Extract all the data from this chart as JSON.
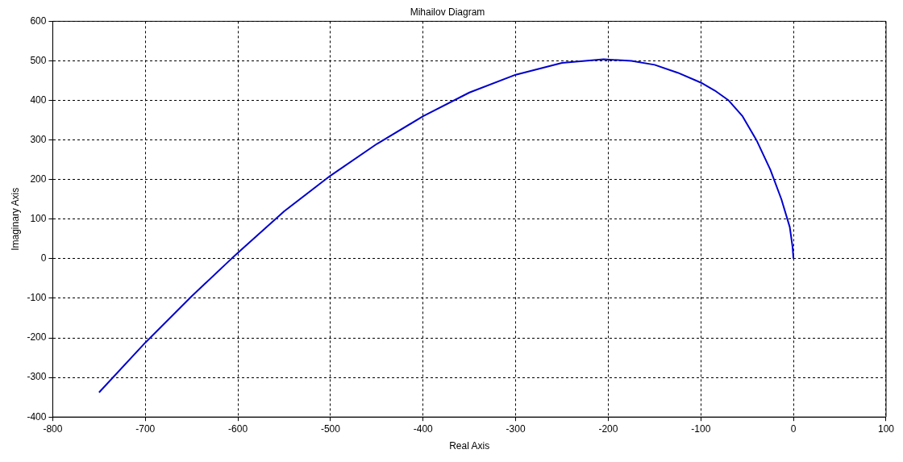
{
  "chart_data": {
    "type": "line",
    "title": "Mihailov Diagram",
    "xlabel": "Real Axis",
    "ylabel": "Imaginary Axis",
    "xlim": [
      -800,
      100
    ],
    "xticks": [
      -800,
      -700,
      -600,
      -500,
      -400,
      -300,
      -200,
      -100,
      0,
      100
    ],
    "ylim": [
      -400,
      600
    ],
    "yticks": [
      -400,
      -300,
      -200,
      -100,
      0,
      100,
      200,
      300,
      400,
      500,
      600
    ],
    "grid": true,
    "marker": "none",
    "line_style": "solid",
    "series": [
      {
        "color": "#0000cc",
        "x": [
          -750,
          -700,
          -650,
          -607,
          -600,
          -550,
          -500,
          -450,
          -400,
          -350,
          -300,
          -250,
          -205,
          -175,
          -150,
          -125,
          -100,
          -85,
          -70,
          -55,
          -40,
          -25,
          -13,
          -4,
          -1,
          0
        ],
        "values": [
          -338,
          -212,
          -95,
          0,
          15,
          120,
          210,
          290,
          360,
          420,
          465,
          495,
          504,
          500,
          490,
          470,
          445,
          425,
          400,
          360,
          300,
          225,
          150,
          80,
          30,
          0
        ]
      }
    ]
  }
}
